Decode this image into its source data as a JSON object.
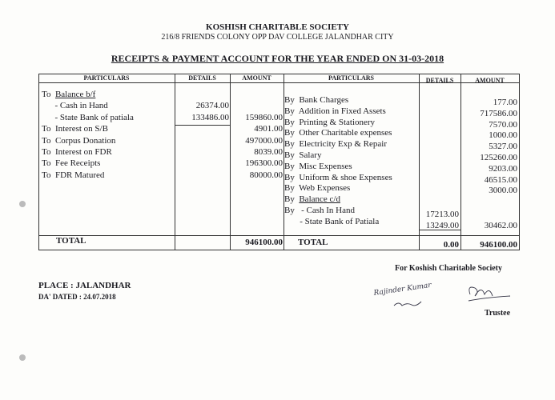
{
  "header": {
    "org": "KOSHISH CHARITABLE SOCIETY",
    "address": "216/8 FRIENDS COLONY OPP DAV COLLEGE JALANDHAR CITY",
    "title": "RECEIPTS & PAYMENT  ACCOUNT FOR THE YEAR ENDED  ON 31-03-2018"
  },
  "columns": {
    "particulars": "PARTICULARS",
    "details": "DETAILS",
    "amount": "AMOUNT"
  },
  "receipts": [
    {
      "p": "To  Balance b/f",
      "d": "",
      "a": "",
      "u": true
    },
    {
      "p": "      - Cash in Hand",
      "d": "26374.00",
      "a": ""
    },
    {
      "p": "      - State Bank of patiala",
      "d": "133486.00",
      "a": "159860.00"
    },
    {
      "p": "To  Interest on S/B",
      "d": "",
      "a": "4901.00"
    },
    {
      "p": "To  Corpus Donation",
      "d": "",
      "a": "497000.00"
    },
    {
      "p": "To  Interest on FDR",
      "d": "",
      "a": "8039.00"
    },
    {
      "p": "To  Fee Receipts",
      "d": "",
      "a": "196300.00"
    },
    {
      "p": "To  FDR Matured",
      "d": "",
      "a": "80000.00"
    }
  ],
  "payments": [
    {
      "p": "By  Bank Charges",
      "d": "",
      "a": "177.00"
    },
    {
      "p": "By  Addition in Fixed Assets",
      "d": "",
      "a": "717586.00"
    },
    {
      "p": "By  Printing & Stationery",
      "d": "",
      "a": "7570.00"
    },
    {
      "p": "By  Other Charitable expenses",
      "d": "",
      "a": "1000.00"
    },
    {
      "p": "By  Electricity Exp & Repair",
      "d": "",
      "a": "5327.00"
    },
    {
      "p": "By  Salary",
      "d": "",
      "a": "125260.00"
    },
    {
      "p": "By  Misc Expenses",
      "d": "",
      "a": "9203.00"
    },
    {
      "p": "By  Uniform & shoe Expenses",
      "d": "",
      "a": "46515.00"
    },
    {
      "p": "By  Web Expenses",
      "d": "",
      "a": "3000.00"
    },
    {
      "p": "By  Balance c/d",
      "d": "",
      "a": "",
      "u": true
    },
    {
      "p": "By   - Cash In Hand",
      "d": "17213.00",
      "a": ""
    },
    {
      "p": "       - State Bank of Patiala",
      "d": "13249.00",
      "a": "30462.00"
    }
  ],
  "totals": {
    "label": "TOTAL",
    "left_amount": "946100.00",
    "right_details": "0.00",
    "right_amount": "946100.00"
  },
  "footer": {
    "for": "For Koshish Charitable Society",
    "place": "PLACE : JALANDHAR",
    "dated": "DA' DATED : 24.07.2018",
    "trustee": "Trustee",
    "signature1": "Rajinder Kumar",
    "signature2": "signature"
  }
}
